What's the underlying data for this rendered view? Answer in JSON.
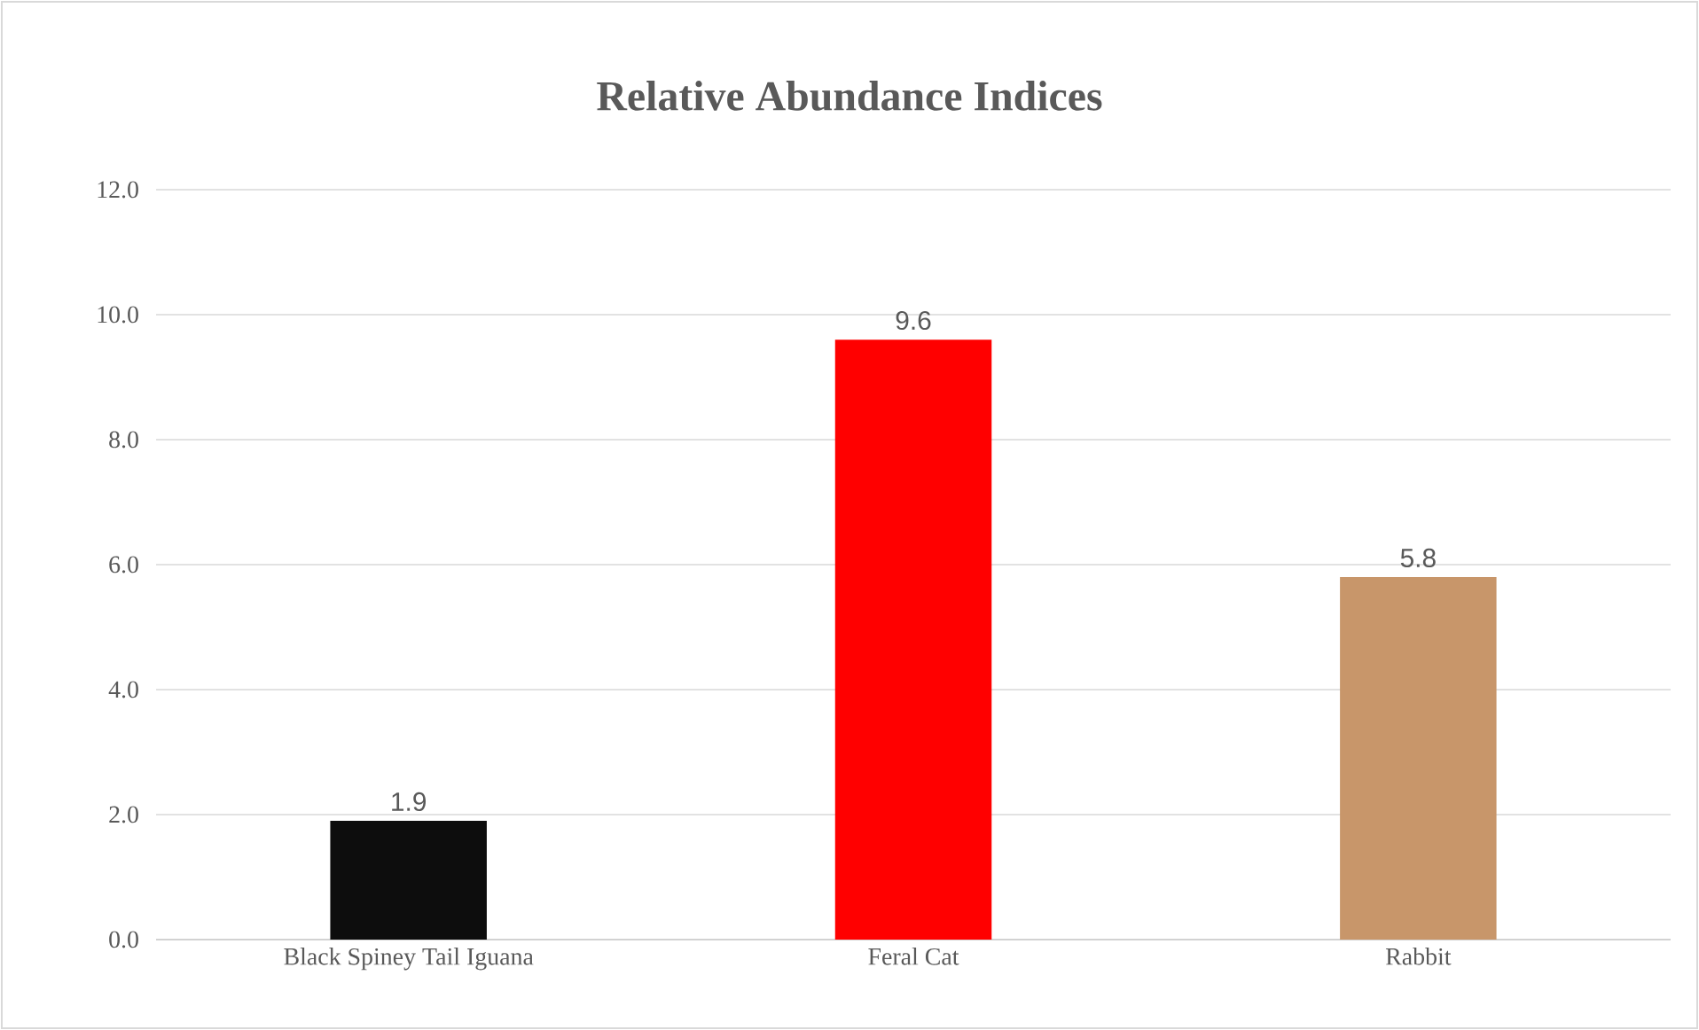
{
  "chart_data": {
    "type": "bar",
    "title": "Relative Abundance Indices",
    "categories": [
      "Black Spiney Tail Iguana",
      "Feral Cat",
      "Rabbit"
    ],
    "values": [
      1.9,
      9.6,
      5.8
    ],
    "colors": [
      "#0d0d0d",
      "#ff0000",
      "#c8966a"
    ],
    "ylim": [
      0,
      12
    ],
    "yticks": [
      {
        "value": 0,
        "label": "0.0"
      },
      {
        "value": 2,
        "label": "2.0"
      },
      {
        "value": 4,
        "label": "4.0"
      },
      {
        "value": 6,
        "label": "6.0"
      },
      {
        "value": 8,
        "label": "8.0"
      },
      {
        "value": 10,
        "label": "10.0"
      },
      {
        "value": 12,
        "label": "12.0"
      }
    ],
    "grid": "y",
    "data_labels": true
  }
}
